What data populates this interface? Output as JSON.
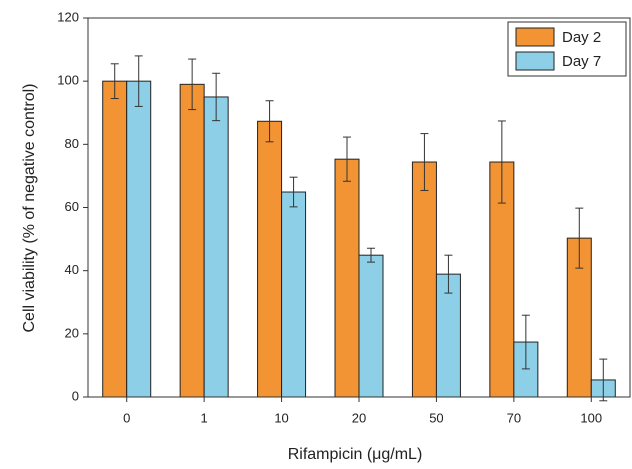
{
  "chart_data": {
    "type": "bar",
    "x_label": "Rifampicin (μg/mL)",
    "y_label": "Cell viability (% of negative control)",
    "categories": [
      "0",
      "1",
      "10",
      "20",
      "50",
      "70",
      "100"
    ],
    "series": [
      {
        "name": "Day 2",
        "color": "#f39434",
        "values": [
          100,
          99,
          87.3,
          75.3,
          74.4,
          74.4,
          50.3
        ],
        "errors": [
          5.5,
          8,
          6.5,
          7,
          9,
          13,
          9.5
        ]
      },
      {
        "name": "Day 7",
        "color": "#8dcfe6",
        "values": [
          100,
          95,
          64.9,
          44.9,
          38.9,
          17.4,
          5.4
        ],
        "errors": [
          8,
          7.5,
          4.7,
          2.2,
          6,
          8.5,
          6.6
        ]
      }
    ],
    "ylim": [
      0,
      120
    ],
    "yticks": [
      0,
      20,
      40,
      60,
      80,
      100,
      120
    ],
    "legend": "upper-right"
  }
}
